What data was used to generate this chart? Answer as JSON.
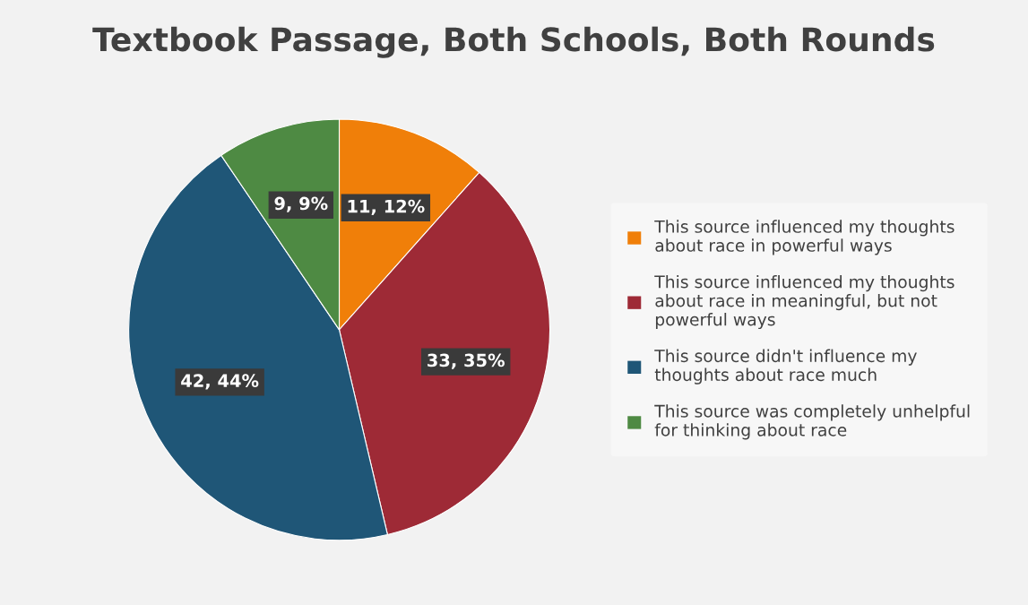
{
  "chart_data": {
    "type": "pie",
    "title": "Textbook Passage, Both Schools, Both Rounds",
    "categories": [
      "This source influenced my thoughts about race in powerful ways",
      "This source influenced my thoughts about race in meaningful, but not powerful ways",
      "This source didn't influence my thoughts about race much",
      "This source was completely unhelpful for thinking about race"
    ],
    "values": [
      11,
      33,
      42,
      9
    ],
    "value_labels": [
      "11, 12%",
      "33, 35%",
      "42, 44%",
      "9, 9%"
    ],
    "colors": [
      "#f07f09",
      "#9e2a36",
      "#1f5677",
      "#4e8a43"
    ],
    "legend": "right"
  }
}
